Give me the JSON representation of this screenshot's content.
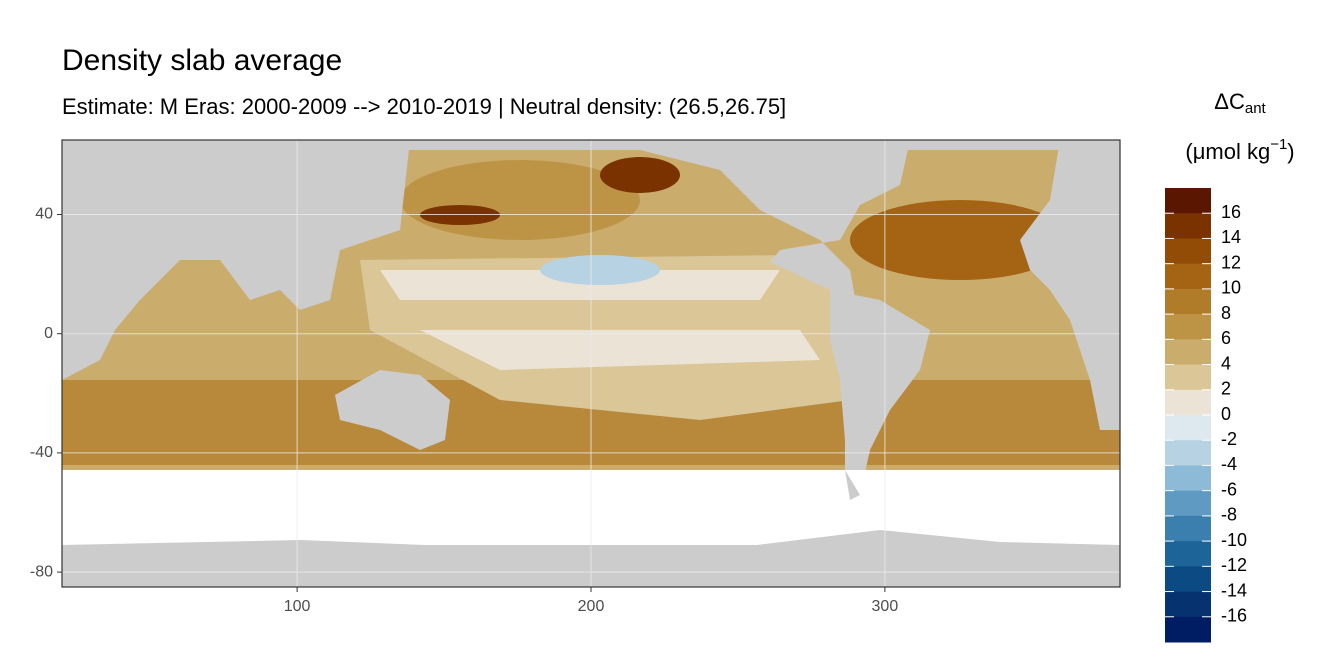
{
  "chart_data": {
    "type": "raster",
    "title": "Density slab average",
    "subtitle": "Estimate: M Eras: 2000-2009 --> 2010-2019 | Neutral density: (26.5,26.75]",
    "xlim": [
      20,
      380
    ],
    "ylim": [
      -85,
      65
    ],
    "xticks": [
      100,
      200,
      300
    ],
    "yticks": [
      40,
      0,
      -40,
      -80
    ],
    "grid": true,
    "legend_title": {
      "symbol": "ΔC",
      "subscript": "ant",
      "unit": "(μmol kg",
      "unit_exponent": "−1",
      "unit_close": ")"
    },
    "legend_breaks": [
      16,
      14,
      12,
      10,
      8,
      6,
      4,
      2,
      0,
      -2,
      -4,
      -6,
      -8,
      -10,
      -12,
      -14,
      -16
    ],
    "legend_colors": [
      "#5a1600",
      "#7a3300",
      "#924c06",
      "#a46414",
      "#b17c2a",
      "#bd9446",
      "#caad6d",
      "#dac697",
      "#eae3d6",
      "#dde8ef",
      "#b7d2e3",
      "#8dbad6",
      "#5e9ac2",
      "#3a7fae",
      "#1d6498",
      "#0b4a83",
      "#063370",
      "#001d63"
    ]
  }
}
